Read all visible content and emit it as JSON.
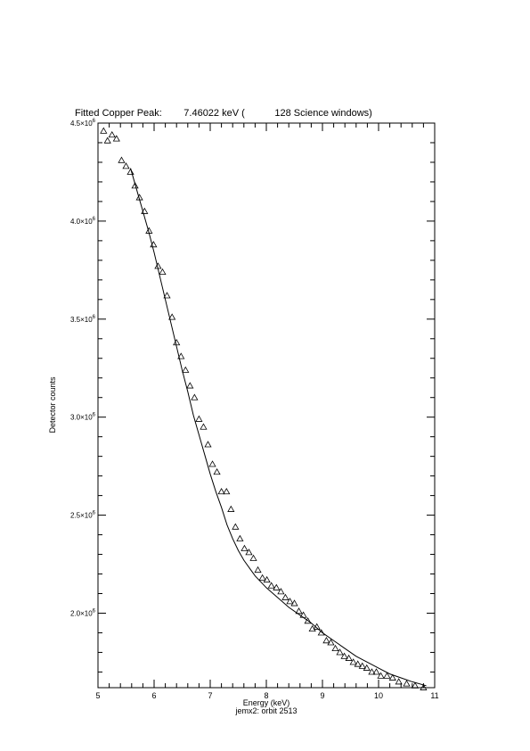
{
  "chart_data": {
    "type": "scatter",
    "title": "Fitted Copper Peak:        7.46022 keV (           128 Science windows)",
    "xlabel": "Energy (keV)",
    "ylabel": "Detector counts",
    "subtitle": "jemx2: orbit 2513",
    "xlim": [
      5,
      11
    ],
    "ylim": [
      1620000,
      4500000
    ],
    "x_ticks": [
      5,
      6,
      7,
      8,
      9,
      10,
      11
    ],
    "x_tick_labels": [
      "5",
      "6",
      "7",
      "8",
      "9",
      "10",
      "11"
    ],
    "y_ticks": [
      2000000,
      2500000,
      3000000,
      3500000,
      4000000,
      4500000
    ],
    "y_tick_mantissas": [
      "2.0",
      "2.5",
      "3.0",
      "3.5",
      "4.0",
      "4.5"
    ],
    "y_tick_base": "×10",
    "y_tick_exponent": "6",
    "grid": false,
    "series": [
      {
        "marker": "triangle",
        "x": [
          5.1,
          5.17,
          5.25,
          5.33,
          5.42,
          5.5,
          5.58,
          5.66,
          5.74,
          5.83,
          5.91,
          5.99,
          6.07,
          6.15,
          6.23,
          6.32,
          6.4,
          6.48,
          6.56,
          6.64,
          6.72,
          6.8,
          6.88,
          6.96,
          7.04,
          7.12,
          7.2,
          7.29,
          7.37,
          7.45,
          7.53,
          7.61,
          7.69,
          7.77,
          7.85,
          7.93,
          8.01,
          8.09,
          8.18,
          8.26,
          8.34,
          8.42,
          8.5,
          8.58,
          8.66,
          8.74,
          8.82,
          8.9,
          8.98,
          9.07,
          9.15,
          9.23,
          9.31,
          9.39,
          9.47,
          9.55,
          9.63,
          9.71,
          9.79,
          9.88,
          9.96,
          10.04,
          10.15,
          10.25,
          10.36,
          10.5,
          10.65,
          10.8
        ],
        "y": [
          4460000,
          4410000,
          4440000,
          4420000,
          4310000,
          4280000,
          4250000,
          4180000,
          4120000,
          4050000,
          3950000,
          3880000,
          3770000,
          3740000,
          3620000,
          3510000,
          3380000,
          3310000,
          3240000,
          3160000,
          3100000,
          2990000,
          2950000,
          2860000,
          2760000,
          2720000,
          2620000,
          2620000,
          2530000,
          2440000,
          2380000,
          2330000,
          2310000,
          2280000,
          2220000,
          2180000,
          2170000,
          2140000,
          2130000,
          2110000,
          2080000,
          2060000,
          2050000,
          2010000,
          1990000,
          1960000,
          1920000,
          1930000,
          1900000,
          1860000,
          1850000,
          1820000,
          1800000,
          1780000,
          1770000,
          1750000,
          1740000,
          1730000,
          1720000,
          1700000,
          1700000,
          1680000,
          1680000,
          1670000,
          1650000,
          1640000,
          1630000,
          1620000
        ]
      },
      {
        "marker": "line",
        "x": [
          5.58,
          5.7,
          5.8,
          5.9,
          6.0,
          6.1,
          6.2,
          6.3,
          6.4,
          6.5,
          6.6,
          6.7,
          6.8,
          6.9,
          7.0,
          7.1,
          7.2,
          7.3,
          7.4,
          7.5,
          7.6,
          7.7,
          7.8,
          7.9,
          8.0,
          8.2,
          8.4,
          8.6,
          8.8,
          9.0,
          9.2,
          9.4,
          9.6,
          9.8,
          10.0,
          10.2,
          10.4,
          10.6,
          10.85
        ],
        "y": [
          4270000,
          4150000,
          4050000,
          3950000,
          3840000,
          3720000,
          3600000,
          3480000,
          3360000,
          3240000,
          3130000,
          3010000,
          2910000,
          2810000,
          2710000,
          2620000,
          2540000,
          2450000,
          2380000,
          2320000,
          2270000,
          2230000,
          2190000,
          2160000,
          2130000,
          2080000,
          2030000,
          1990000,
          1950000,
          1900000,
          1860000,
          1820000,
          1780000,
          1750000,
          1720000,
          1690000,
          1670000,
          1650000,
          1630000
        ]
      }
    ]
  }
}
